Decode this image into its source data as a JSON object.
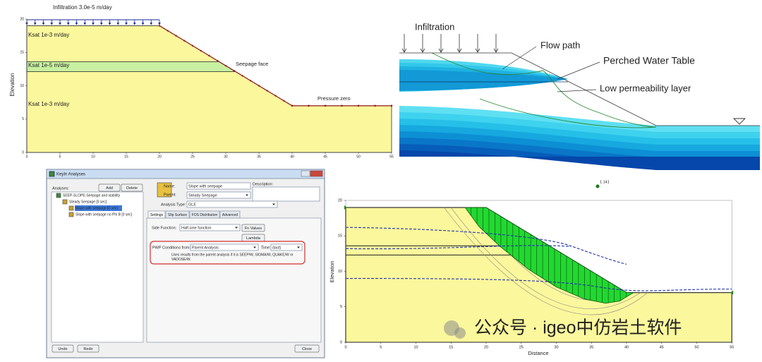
{
  "slope_model": {
    "infiltration": "Infiltration 3.0e-5 m/day",
    "y_label": "Elevation",
    "layers": [
      "Ksat 1e-3 m/day",
      "Ksat 1e-5 m/day",
      "Ksat 1e-3 m/day"
    ],
    "seepage_face": "Seepage face",
    "pressure_zero": "Pressure zero",
    "xticks": [
      0,
      5,
      10,
      15,
      20,
      25,
      30,
      35,
      40,
      45,
      50,
      55
    ],
    "yticks": [
      0,
      5,
      10,
      15,
      20
    ]
  },
  "perched_diagram": {
    "infiltration": "Infiltration",
    "flow_path": "Flow path",
    "perched_water_table": "Perched Water Table",
    "low_permeability_layer": "Low permeability layer"
  },
  "dialog": {
    "title": "KeyIn Analyses",
    "analyses_label": "Analyses:",
    "add": "Add",
    "delete": "Delete",
    "tree": [
      "SEEP-SLOPE-Seepage and stability",
      "Steady Seepage [0 sec]",
      "Slope with seepage [0 sec]",
      "Slope with seepage no Phi B [0 sec]"
    ],
    "name_label": "Name:",
    "name": "Slope with seepage",
    "parent_label": "Parent:",
    "parent": "Steady Seepage",
    "description_label": "Description:",
    "analysis_type_label": "Analysis Type:",
    "analysis_type": "GLE",
    "tabs": [
      "Settings",
      "Slip Surface",
      "FOS Distribution",
      "Advanced"
    ],
    "side_function_label": "Side Function:",
    "side_function": "Half-sine function",
    "fn_values": "Fn Values",
    "lambda": "Lambda",
    "pwp_label": "PWP Conditions from:",
    "pwp": "Parent Analysis",
    "time_label": "Time:",
    "time": "(last)",
    "note": [
      "Uses results from the parent analysis if it is SEEP/W, SIGMA/W, QUAKE/W or",
      "VADOSE/W."
    ],
    "undo": "Undo",
    "redo": "Redo",
    "close": "Close"
  },
  "slope_result": {
    "factor_of_safety": "1.141",
    "y_label": "Elevation",
    "x_label": "Distance",
    "xticks": [
      0,
      5,
      10,
      15,
      20,
      25,
      30,
      35,
      40,
      45,
      50,
      55
    ],
    "yticks": [
      0,
      5,
      10,
      15,
      20
    ]
  },
  "watermark": "公众号 · igeo中仿岩土软件"
}
